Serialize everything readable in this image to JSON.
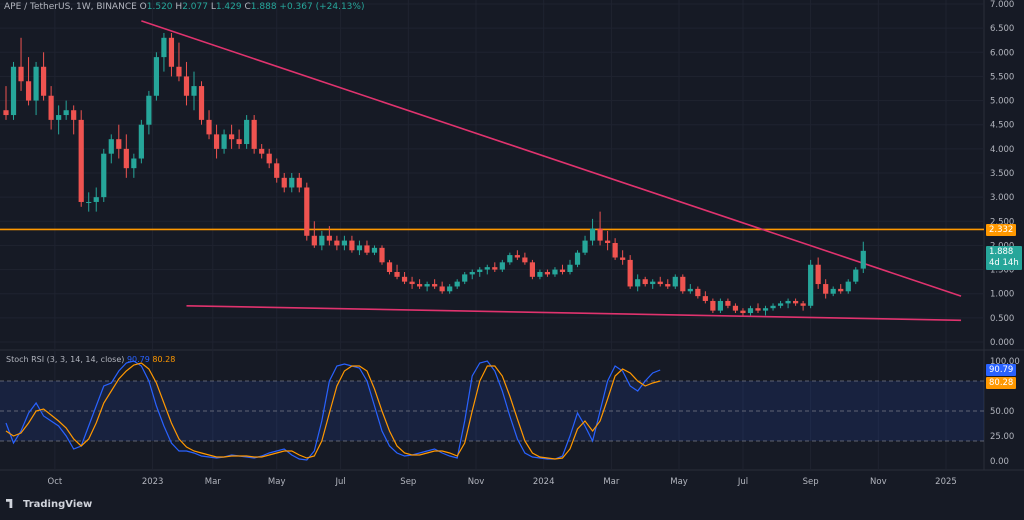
{
  "header": {
    "symbol": "APE / TetherUS, 1W, BINANCE",
    "open_label": "O",
    "open": "1.520",
    "high_label": "H",
    "high": "2.077",
    "low_label": "L",
    "low": "1.429",
    "close_label": "C",
    "close": "1.888",
    "change": "+0.367 (+24.13%)"
  },
  "price_tags": {
    "level": "2.332",
    "last": "1.888",
    "countdown": "4d 14h"
  },
  "stoch": {
    "title": "Stoch RSI (3, 3, 14, 14, close)",
    "k_value": "90.79",
    "d_value": "80.28",
    "k_color": "#2962ff",
    "d_color": "#ff9800"
  },
  "brand": {
    "name": "TradingView"
  },
  "colors": {
    "up": "#26a69a",
    "down": "#ef5350",
    "trendline": "#e0336e",
    "level": "#ff9800",
    "background": "#161a25"
  },
  "chart_data": [
    {
      "type": "candlestick",
      "name": "price",
      "ylim": [
        0,
        7
      ],
      "yticks": [
        "0.000",
        "0.500",
        "1.000",
        "1.500",
        "2.000",
        "2.500",
        "3.000",
        "3.500",
        "4.000",
        "4.500",
        "5.000",
        "5.500",
        "6.000",
        "6.500",
        "7.000"
      ],
      "xlabels": [
        {
          "label": "Oct",
          "t": 6.5
        },
        {
          "label": "2023",
          "t": 19.5
        },
        {
          "label": "Mar",
          "t": 27.5
        },
        {
          "label": "May",
          "t": 36
        },
        {
          "label": "Jul",
          "t": 44.5
        },
        {
          "label": "Sep",
          "t": 53.5
        },
        {
          "label": "Nov",
          "t": 62.5
        },
        {
          "label": "2024",
          "t": 71.5
        },
        {
          "label": "Mar",
          "t": 80.5
        },
        {
          "label": "May",
          "t": 89.5
        },
        {
          "label": "Jul",
          "t": 98
        },
        {
          "label": "Sep",
          "t": 107
        },
        {
          "label": "Nov",
          "t": 116
        },
        {
          "label": "2025",
          "t": 125
        }
      ],
      "horizontal_level": 2.332,
      "trendlines": [
        {
          "t1": 18,
          "y1": 6.65,
          "t2": 127,
          "y2": 0.95
        },
        {
          "t1": 24,
          "y1": 0.75,
          "t2": 127,
          "y2": 0.45
        }
      ],
      "ohlc": [
        [
          4.8,
          5.3,
          4.6,
          4.7
        ],
        [
          4.7,
          5.8,
          4.6,
          5.7
        ],
        [
          5.7,
          6.3,
          5.2,
          5.4
        ],
        [
          5.4,
          5.9,
          4.9,
          5.0
        ],
        [
          5.0,
          5.8,
          4.7,
          5.7
        ],
        [
          5.7,
          6.0,
          5.0,
          5.1
        ],
        [
          5.1,
          5.3,
          4.4,
          4.6
        ],
        [
          4.6,
          4.9,
          4.3,
          4.7
        ],
        [
          4.7,
          5.0,
          4.6,
          4.8
        ],
        [
          4.8,
          4.9,
          4.3,
          4.6
        ],
        [
          4.6,
          4.8,
          2.8,
          2.9
        ],
        [
          2.9,
          3.1,
          2.7,
          2.9
        ],
        [
          2.9,
          3.2,
          2.7,
          3.0
        ],
        [
          3.0,
          4.0,
          2.9,
          3.9
        ],
        [
          3.9,
          4.3,
          3.7,
          4.2
        ],
        [
          4.2,
          4.5,
          3.8,
          4.0
        ],
        [
          4.0,
          4.3,
          3.4,
          3.6
        ],
        [
          3.6,
          3.9,
          3.4,
          3.8
        ],
        [
          3.8,
          4.6,
          3.7,
          4.5
        ],
        [
          4.5,
          5.2,
          4.3,
          5.1
        ],
        [
          5.1,
          6.0,
          5.0,
          5.9
        ],
        [
          5.9,
          6.4,
          5.6,
          6.3
        ],
        [
          6.3,
          6.4,
          5.5,
          5.7
        ],
        [
          5.7,
          6.2,
          5.4,
          5.5
        ],
        [
          5.5,
          5.8,
          4.9,
          5.1
        ],
        [
          5.1,
          5.6,
          4.8,
          5.3
        ],
        [
          5.3,
          5.4,
          4.5,
          4.6
        ],
        [
          4.6,
          4.8,
          4.2,
          4.3
        ],
        [
          4.3,
          4.5,
          3.8,
          4.0
        ],
        [
          4.0,
          4.4,
          3.9,
          4.3
        ],
        [
          4.3,
          4.5,
          4.0,
          4.2
        ],
        [
          4.2,
          4.4,
          4.0,
          4.1
        ],
        [
          4.1,
          4.7,
          4.0,
          4.6
        ],
        [
          4.6,
          4.7,
          3.9,
          4.0
        ],
        [
          4.0,
          4.1,
          3.8,
          3.9
        ],
        [
          3.9,
          4.0,
          3.6,
          3.7
        ],
        [
          3.7,
          3.8,
          3.3,
          3.4
        ],
        [
          3.4,
          3.5,
          3.1,
          3.2
        ],
        [
          3.2,
          3.5,
          3.1,
          3.4
        ],
        [
          3.4,
          3.5,
          3.1,
          3.2
        ],
        [
          3.2,
          3.3,
          2.1,
          2.2
        ],
        [
          2.2,
          2.5,
          1.95,
          2.0
        ],
        [
          2.0,
          2.3,
          1.9,
          2.2
        ],
        [
          2.2,
          2.4,
          2.0,
          2.1
        ],
        [
          2.1,
          2.2,
          1.9,
          2.0
        ],
        [
          2.0,
          2.2,
          1.9,
          2.1
        ],
        [
          2.1,
          2.2,
          1.85,
          1.9
        ],
        [
          1.9,
          2.1,
          1.8,
          2.0
        ],
        [
          2.0,
          2.1,
          1.8,
          1.85
        ],
        [
          1.85,
          2.0,
          1.8,
          1.95
        ],
        [
          1.95,
          2.0,
          1.6,
          1.65
        ],
        [
          1.65,
          1.7,
          1.4,
          1.45
        ],
        [
          1.45,
          1.6,
          1.3,
          1.35
        ],
        [
          1.35,
          1.45,
          1.2,
          1.25
        ],
        [
          1.25,
          1.35,
          1.1,
          1.2
        ],
        [
          1.2,
          1.3,
          1.1,
          1.15
        ],
        [
          1.15,
          1.25,
          1.05,
          1.2
        ],
        [
          1.2,
          1.3,
          1.1,
          1.15
        ],
        [
          1.15,
          1.25,
          1.0,
          1.05
        ],
        [
          1.05,
          1.2,
          1.0,
          1.15
        ],
        [
          1.15,
          1.3,
          1.1,
          1.25
        ],
        [
          1.25,
          1.45,
          1.2,
          1.4
        ],
        [
          1.4,
          1.5,
          1.3,
          1.45
        ],
        [
          1.45,
          1.55,
          1.35,
          1.5
        ],
        [
          1.5,
          1.6,
          1.4,
          1.55
        ],
        [
          1.55,
          1.65,
          1.45,
          1.5
        ],
        [
          1.5,
          1.7,
          1.45,
          1.65
        ],
        [
          1.65,
          1.85,
          1.6,
          1.8
        ],
        [
          1.8,
          1.9,
          1.7,
          1.75
        ],
        [
          1.75,
          1.85,
          1.6,
          1.65
        ],
        [
          1.65,
          1.7,
          1.3,
          1.35
        ],
        [
          1.35,
          1.5,
          1.3,
          1.45
        ],
        [
          1.45,
          1.5,
          1.35,
          1.4
        ],
        [
          1.4,
          1.55,
          1.35,
          1.5
        ],
        [
          1.5,
          1.6,
          1.4,
          1.45
        ],
        [
          1.45,
          1.7,
          1.4,
          1.6
        ],
        [
          1.6,
          1.9,
          1.55,
          1.85
        ],
        [
          1.85,
          2.2,
          1.8,
          2.1
        ],
        [
          2.1,
          2.55,
          2.0,
          2.35
        ],
        [
          2.35,
          2.7,
          2.0,
          2.1
        ],
        [
          2.1,
          2.3,
          1.9,
          2.05
        ],
        [
          2.05,
          2.15,
          1.7,
          1.75
        ],
        [
          1.75,
          1.9,
          1.6,
          1.7
        ],
        [
          1.7,
          1.8,
          1.1,
          1.15
        ],
        [
          1.15,
          1.4,
          1.05,
          1.3
        ],
        [
          1.3,
          1.35,
          1.15,
          1.2
        ],
        [
          1.2,
          1.3,
          1.1,
          1.25
        ],
        [
          1.25,
          1.35,
          1.15,
          1.2
        ],
        [
          1.2,
          1.3,
          1.1,
          1.15
        ],
        [
          1.15,
          1.4,
          1.1,
          1.35
        ],
        [
          1.35,
          1.4,
          1.0,
          1.05
        ],
        [
          1.05,
          1.2,
          1.0,
          1.1
        ],
        [
          1.1,
          1.15,
          0.9,
          0.95
        ],
        [
          0.95,
          1.05,
          0.8,
          0.85
        ],
        [
          0.85,
          0.9,
          0.6,
          0.65
        ],
        [
          0.65,
          0.9,
          0.6,
          0.85
        ],
        [
          0.85,
          0.9,
          0.7,
          0.75
        ],
        [
          0.75,
          0.8,
          0.6,
          0.65
        ],
        [
          0.65,
          0.7,
          0.55,
          0.6
        ],
        [
          0.6,
          0.75,
          0.55,
          0.7
        ],
        [
          0.7,
          0.8,
          0.6,
          0.65
        ],
        [
          0.65,
          0.75,
          0.55,
          0.7
        ],
        [
          0.7,
          0.8,
          0.65,
          0.75
        ],
        [
          0.75,
          0.85,
          0.7,
          0.8
        ],
        [
          0.8,
          0.9,
          0.7,
          0.85
        ],
        [
          0.85,
          0.9,
          0.75,
          0.8
        ],
        [
          0.8,
          0.85,
          0.65,
          0.75
        ],
        [
          0.75,
          1.7,
          0.7,
          1.6
        ],
        [
          1.6,
          1.75,
          1.1,
          1.2
        ],
        [
          1.2,
          1.3,
          0.9,
          1.0
        ],
        [
          1.0,
          1.15,
          0.95,
          1.1
        ],
        [
          1.1,
          1.2,
          1.0,
          1.05
        ],
        [
          1.05,
          1.3,
          1.0,
          1.25
        ],
        [
          1.25,
          1.55,
          1.2,
          1.5
        ],
        [
          1.52,
          2.077,
          1.429,
          1.888
        ]
      ]
    },
    {
      "type": "line",
      "name": "stoch_rsi",
      "ylim": [
        0,
        100
      ],
      "yticks": [
        "0.00",
        "25.00",
        "50.00",
        "75.00",
        "100.00"
      ],
      "band": [
        20,
        80
      ],
      "series": [
        {
          "name": "K",
          "values": [
            38,
            18,
            30,
            48,
            58,
            45,
            40,
            35,
            25,
            12,
            15,
            35,
            55,
            75,
            78,
            90,
            98,
            100,
            95,
            80,
            55,
            35,
            18,
            10,
            10,
            8,
            5,
            4,
            3,
            4,
            6,
            5,
            4,
            3,
            5,
            8,
            10,
            12,
            6,
            2,
            1,
            10,
            40,
            80,
            95,
            97,
            95,
            93,
            80,
            55,
            30,
            15,
            8,
            5,
            6,
            8,
            10,
            12,
            8,
            5,
            3,
            40,
            85,
            98,
            100,
            90,
            70,
            45,
            22,
            8,
            4,
            3,
            2,
            2,
            5,
            25,
            48,
            35,
            20,
            50,
            80,
            95,
            90,
            75,
            70,
            80,
            88,
            91
          ]
        },
        {
          "name": "D",
          "values": [
            30,
            25,
            28,
            38,
            50,
            52,
            46,
            40,
            33,
            22,
            15,
            22,
            38,
            58,
            70,
            82,
            90,
            96,
            98,
            92,
            78,
            58,
            38,
            22,
            14,
            10,
            8,
            6,
            4,
            4,
            5,
            5,
            5,
            4,
            4,
            6,
            8,
            10,
            10,
            6,
            3,
            5,
            20,
            48,
            75,
            90,
            95,
            95,
            90,
            72,
            50,
            30,
            15,
            8,
            6,
            6,
            8,
            10,
            10,
            8,
            5,
            18,
            50,
            80,
            95,
            95,
            85,
            65,
            42,
            20,
            8,
            4,
            3,
            2,
            3,
            12,
            32,
            40,
            30,
            40,
            62,
            85,
            92,
            88,
            80,
            75,
            78,
            80
          ]
        }
      ]
    }
  ]
}
